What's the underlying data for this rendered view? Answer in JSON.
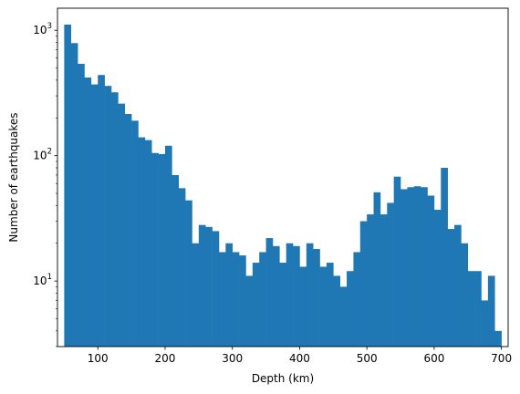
{
  "chart_data": {
    "type": "bar",
    "subtype": "histogram",
    "title": "",
    "xlabel": "Depth (km)",
    "ylabel": "Number of earthquakes",
    "yscale": "log",
    "xlim": [
      40,
      710
    ],
    "ylim": [
      3,
      1500
    ],
    "grid": false,
    "bar_color": "#1f77b4",
    "x_ticks": [
      100,
      200,
      300,
      400,
      500,
      600,
      700
    ],
    "y_ticks": [
      {
        "value": 10,
        "base": "10",
        "exp": "1"
      },
      {
        "value": 100,
        "base": "10",
        "exp": "2"
      },
      {
        "value": 1000,
        "base": "10",
        "exp": "3"
      }
    ],
    "bin_edges": [
      50,
      60,
      70,
      80,
      90,
      100,
      110,
      120,
      130,
      140,
      150,
      160,
      170,
      180,
      190,
      200,
      210,
      220,
      230,
      240,
      250,
      260,
      270,
      280,
      290,
      300,
      310,
      320,
      330,
      340,
      350,
      360,
      370,
      380,
      390,
      400,
      410,
      420,
      430,
      440,
      450,
      460,
      470,
      480,
      490,
      500,
      510,
      520,
      530,
      540,
      550,
      560,
      570,
      580,
      590,
      600,
      610,
      620,
      630,
      640,
      650,
      660,
      670,
      680,
      690
    ],
    "values": [
      1110,
      790,
      540,
      420,
      370,
      440,
      360,
      320,
      260,
      215,
      190,
      140,
      133,
      105,
      103,
      120,
      70,
      55,
      44,
      20,
      28,
      27,
      25,
      17,
      20,
      17,
      16,
      11,
      14,
      17,
      22,
      19,
      14,
      20,
      19,
      13,
      20,
      18,
      13,
      14,
      11,
      9,
      12,
      17,
      30,
      34,
      51,
      34,
      42,
      68,
      54,
      56,
      57,
      56,
      48,
      37,
      80,
      26,
      28,
      20,
      12,
      12,
      7,
      11,
      4
    ]
  }
}
